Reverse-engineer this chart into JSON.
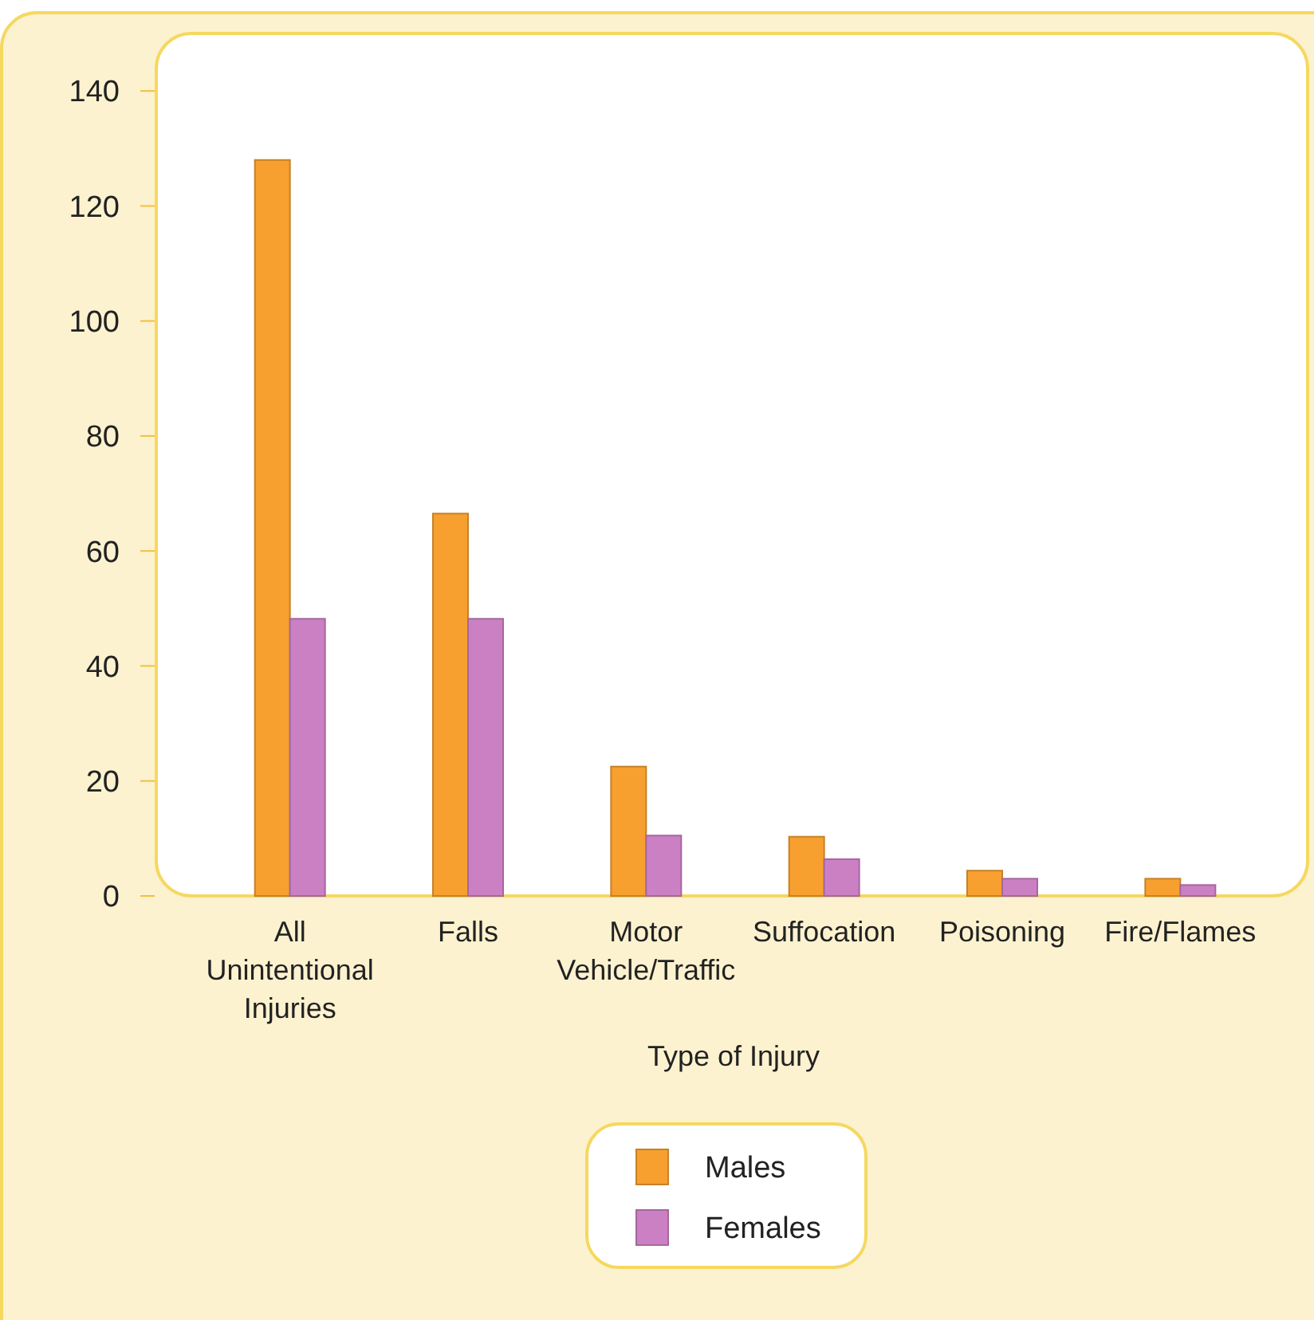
{
  "chart_data": {
    "type": "bar",
    "xlabel": "Type of Injury",
    "categories": [
      "All Unintentional Injuries",
      "Falls",
      "Motor Vehicle/Traffic",
      "Suffocation",
      "Poisoning",
      "Fire/Flames"
    ],
    "series": [
      {
        "name": "Males",
        "color": "#f7a030",
        "values": [
          128,
          66.5,
          22.5,
          10.3,
          4.4,
          3.0
        ]
      },
      {
        "name": "Females",
        "color": "#cc80c4",
        "values": [
          48.2,
          48.2,
          10.5,
          6.4,
          3.0,
          1.9
        ]
      }
    ],
    "ylim": [
      0,
      150
    ],
    "yticks": [
      0,
      20,
      40,
      60,
      80,
      100,
      120,
      140
    ],
    "grid": false,
    "legend": "bottom"
  }
}
